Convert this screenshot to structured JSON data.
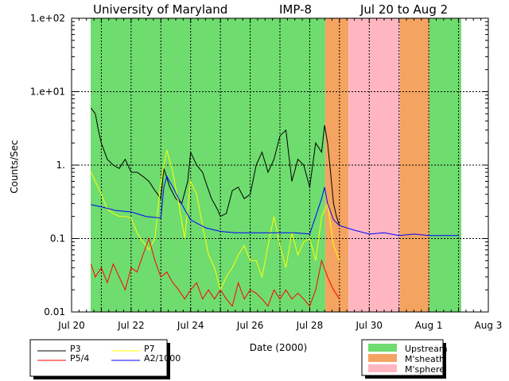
{
  "chart_data": {
    "type": "line",
    "title_parts": [
      "University of Maryland",
      "IMP-8",
      "Jul 20 to Aug 2"
    ],
    "xlabel": "Date (2000)",
    "ylabel": "Counts/Sec",
    "yscale": "log",
    "ylim": [
      0.01,
      100
    ],
    "xlim_days": [
      0,
      14
    ],
    "x_unit": "days since Jul 20, 2000",
    "x_tick_days": [
      0,
      2,
      4,
      6,
      8,
      10,
      12,
      14
    ],
    "x_tick_labels": [
      "Jul 20",
      "Jul 22",
      "Jul 24",
      "Jul 26",
      "Jul 28",
      "Jul 30",
      "Aug 1",
      "Aug 3"
    ],
    "y_ticks": [
      0.01,
      0.1,
      1,
      10,
      100
    ],
    "y_tick_labels": [
      "0.01",
      "0.1",
      "1.",
      "1.e+01",
      "1.e+02"
    ],
    "grid": "dashed, daily vertical and per-decade horizontal",
    "regions": [
      {
        "name": "Upstream",
        "start": 0.64,
        "end": 8.52,
        "color": "#6fdc6f"
      },
      {
        "name": "M'sheath",
        "start": 8.52,
        "end": 9.3,
        "color": "#f4a460"
      },
      {
        "name": "M'sphere",
        "start": 9.3,
        "end": 11.03,
        "color": "#ffb6c1"
      },
      {
        "name": "M'sheath",
        "start": 11.03,
        "end": 12.02,
        "color": "#f4a460"
      },
      {
        "name": "Upstream",
        "start": 12.02,
        "end": 13.09,
        "color": "#6fdc6f"
      }
    ],
    "series": [
      {
        "name": "P3",
        "color": "#000000",
        "x": [
          0.65,
          0.8,
          0.9,
          1.0,
          1.2,
          1.4,
          1.6,
          1.8,
          2.0,
          2.2,
          2.4,
          2.6,
          2.8,
          3.0,
          3.1,
          3.3,
          3.5,
          3.7,
          3.9,
          4.0,
          4.2,
          4.4,
          4.5,
          4.7,
          4.9,
          5.0,
          5.2,
          5.4,
          5.6,
          5.8,
          6.0,
          6.2,
          6.4,
          6.6,
          6.8,
          7.0,
          7.2,
          7.4,
          7.6,
          7.8,
          8.0,
          8.2,
          8.4,
          8.5,
          8.6,
          8.7,
          8.8,
          8.9,
          9.0
        ],
        "y": [
          6.0,
          5.0,
          3.0,
          2.0,
          1.2,
          1.0,
          0.9,
          1.2,
          0.8,
          0.8,
          0.7,
          0.6,
          0.45,
          0.35,
          0.9,
          0.5,
          0.35,
          0.3,
          0.6,
          1.5,
          1.0,
          0.8,
          0.6,
          0.35,
          0.25,
          0.2,
          0.22,
          0.45,
          0.5,
          0.35,
          0.4,
          1.0,
          1.5,
          0.8,
          1.2,
          2.5,
          3.0,
          0.6,
          1.2,
          1.0,
          0.5,
          2.0,
          1.5,
          3.5,
          2.0,
          0.8,
          0.3,
          0.2,
          0.15
        ]
      },
      {
        "name": "P5/4",
        "color": "#ff0000",
        "x": [
          0.65,
          0.8,
          1.0,
          1.2,
          1.4,
          1.6,
          1.8,
          2.0,
          2.2,
          2.4,
          2.6,
          2.8,
          3.0,
          3.2,
          3.4,
          3.6,
          3.8,
          4.0,
          4.2,
          4.4,
          4.6,
          4.8,
          5.0,
          5.2,
          5.4,
          5.6,
          5.8,
          6.0,
          6.2,
          6.4,
          6.6,
          6.8,
          7.0,
          7.2,
          7.4,
          7.6,
          7.8,
          8.0,
          8.2,
          8.4,
          8.6,
          8.8,
          9.0
        ],
        "y": [
          0.045,
          0.03,
          0.04,
          0.025,
          0.045,
          0.03,
          0.02,
          0.04,
          0.035,
          0.06,
          0.1,
          0.05,
          0.03,
          0.035,
          0.025,
          0.02,
          0.015,
          0.02,
          0.025,
          0.015,
          0.02,
          0.015,
          0.02,
          0.015,
          0.012,
          0.025,
          0.015,
          0.02,
          0.018,
          0.015,
          0.012,
          0.02,
          0.015,
          0.02,
          0.015,
          0.018,
          0.015,
          0.012,
          0.02,
          0.05,
          0.03,
          0.02,
          0.015
        ]
      },
      {
        "name": "P7",
        "color": "#ffff00",
        "x": [
          0.65,
          0.8,
          1.0,
          1.2,
          1.4,
          1.6,
          1.8,
          2.0,
          2.2,
          2.4,
          2.6,
          2.8,
          3.0,
          3.2,
          3.4,
          3.6,
          3.8,
          4.0,
          4.2,
          4.4,
          4.6,
          4.8,
          5.0,
          5.2,
          5.4,
          5.6,
          5.8,
          6.0,
          6.2,
          6.4,
          6.6,
          6.8,
          7.0,
          7.2,
          7.4,
          7.6,
          7.8,
          8.0,
          8.2,
          8.4,
          8.6,
          8.8,
          9.0
        ],
        "y": [
          0.8,
          0.6,
          0.4,
          0.25,
          0.22,
          0.2,
          0.2,
          0.19,
          0.12,
          0.09,
          0.07,
          0.1,
          0.6,
          1.6,
          0.8,
          0.3,
          0.1,
          0.6,
          0.4,
          0.15,
          0.06,
          0.04,
          0.02,
          0.03,
          0.04,
          0.06,
          0.08,
          0.05,
          0.05,
          0.03,
          0.08,
          0.2,
          0.08,
          0.04,
          0.12,
          0.06,
          0.09,
          0.1,
          0.05,
          0.2,
          0.3,
          0.08,
          0.05
        ]
      },
      {
        "name": "A2/1000",
        "color": "#0000ff",
        "x": [
          0.65,
          1.0,
          1.5,
          2.0,
          2.5,
          3.0,
          3.1,
          3.2,
          3.4,
          3.6,
          3.8,
          4.0,
          4.5,
          5.0,
          5.5,
          6.0,
          6.5,
          7.0,
          7.5,
          8.0,
          8.2,
          8.4,
          8.5,
          8.6,
          8.8,
          9.0,
          9.5,
          10.0,
          10.5,
          11.0,
          11.5,
          12.0,
          12.5,
          13.0
        ],
        "y": [
          0.29,
          0.27,
          0.24,
          0.23,
          0.2,
          0.19,
          0.5,
          0.7,
          0.5,
          0.35,
          0.25,
          0.18,
          0.14,
          0.125,
          0.12,
          0.12,
          0.12,
          0.12,
          0.12,
          0.115,
          0.2,
          0.35,
          0.5,
          0.3,
          0.18,
          0.15,
          0.13,
          0.115,
          0.12,
          0.11,
          0.115,
          0.11,
          0.11,
          0.11
        ]
      }
    ],
    "legend_lines": {
      "position": "bottom-left",
      "entries": [
        "P3",
        "P7",
        "P5/4",
        "A2/1000"
      ]
    },
    "legend_regions": {
      "position": "bottom-right",
      "entries": [
        {
          "label": "Upstream",
          "color": "#6fdc6f"
        },
        {
          "label": "M'sheath",
          "color": "#f4a460"
        },
        {
          "label": "M'sphere",
          "color": "#ffb6c1"
        }
      ]
    }
  }
}
